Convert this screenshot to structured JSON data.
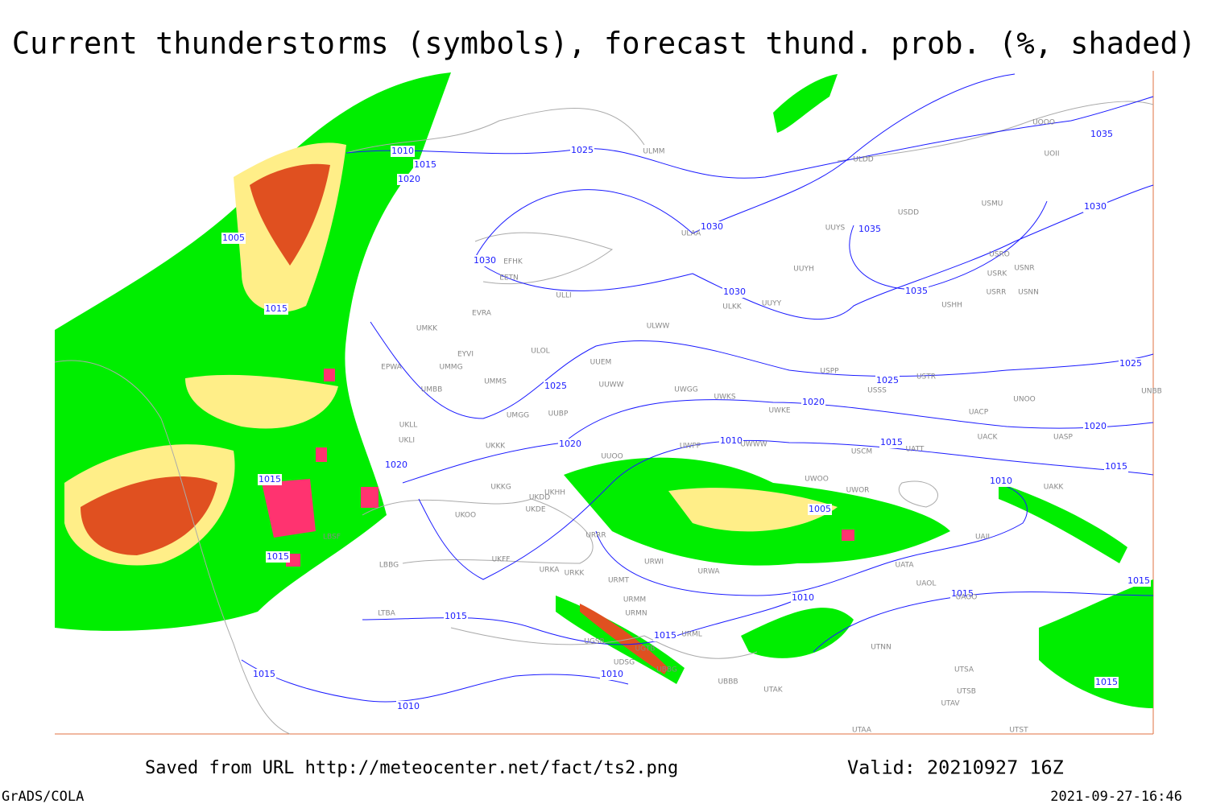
{
  "header": {
    "title": "Current thunderstorms (symbols), forecast thund. prob. (%, shaded)"
  },
  "map": {
    "isobar_labels": [
      1010,
      1015,
      1020,
      1025,
      1005,
      1030,
      1035,
      1030,
      1015,
      1030,
      1035,
      1035,
      1030,
      1025,
      1025,
      1025,
      1020,
      1020,
      1010,
      1015,
      1020,
      1020,
      1015,
      1015,
      1010,
      1005,
      1015,
      1010,
      1015,
      1015,
      1015,
      1015,
      1010,
      1015,
      1015,
      1010
    ],
    "stations": [
      "EFHK",
      "EETN",
      "ULLI",
      "EVRA",
      "ULOL",
      "UMKK",
      "EYVI",
      "UMMG",
      "EPWA",
      "UMMS",
      "UMGG",
      "UMBB",
      "UKLL",
      "UKLI",
      "UKKK",
      "UUBP",
      "UUEM",
      "UUWW",
      "ULWW",
      "ULKK",
      "UUYY",
      "ULAA",
      "ULDD",
      "UUYS",
      "UUYH",
      "USDD",
      "USMU",
      "USRO",
      "USRK",
      "USNR",
      "USRR",
      "USNN",
      "USHH",
      "USPP",
      "USTR",
      "USSS",
      "UWGG",
      "UWKS",
      "UWKE",
      "UWWW",
      "UWPP",
      "UWOO",
      "UWOR",
      "USCM",
      "UATT",
      "UNOO",
      "UACP",
      "UACK",
      "UASP",
      "UAKK",
      "UAII",
      "UATA",
      "UAOL",
      "UAOO",
      "UTNN",
      "UTSA",
      "UTSB",
      "UTAV",
      "UTAA",
      "UTST",
      "UTAK",
      "UBBB",
      "UGTB",
      "UGSB",
      "UDSG",
      "UBBG",
      "URMT",
      "URMM",
      "URMN",
      "URML",
      "URWI",
      "URWA",
      "URRR",
      "URKK",
      "URKA",
      "UKFF",
      "UKOO",
      "UKHH",
      "UKDE",
      "UKDD",
      "UKKG",
      "UUOO",
      "LBBG",
      "LBSF",
      "LTBA",
      "UOOO",
      "UOII",
      "UNBB",
      "ULMM"
    ]
  },
  "footer": {
    "source": "Saved from URL http://meteocenter.net/fact/ts2.png",
    "valid": "Valid: 20210927 16Z",
    "software": "GrADS/COLA",
    "timestamp": "2021-09-27-16:46"
  }
}
